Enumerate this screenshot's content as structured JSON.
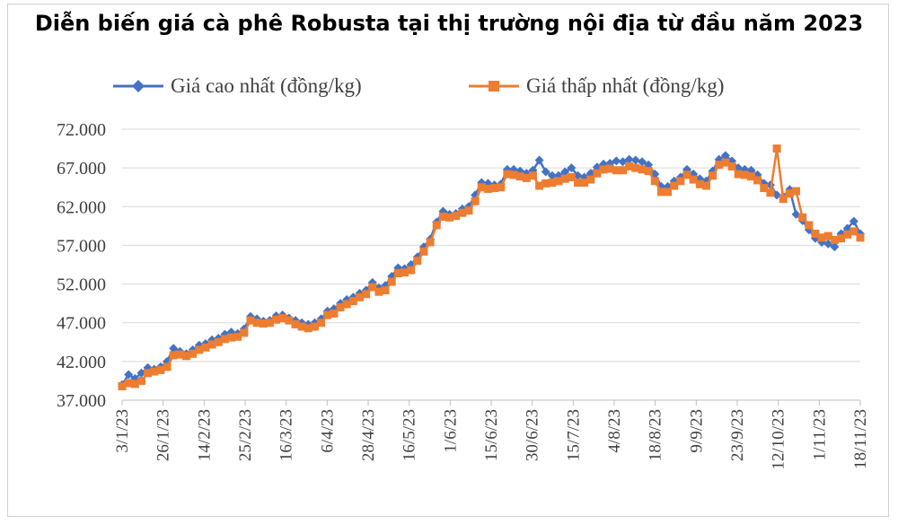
{
  "chart_data": {
    "type": "line",
    "title": "Diễn biến giá cà phê Robusta tại thị trường nội địa từ đầu năm 2023",
    "xlabel": "",
    "ylabel": "",
    "ylim": [
      37000,
      72000
    ],
    "yticks": [
      {
        "value": 37000,
        "label": "37.000"
      },
      {
        "value": 42000,
        "label": "42.000"
      },
      {
        "value": 47000,
        "label": "47.000"
      },
      {
        "value": 52000,
        "label": "52.000"
      },
      {
        "value": 57000,
        "label": "57.000"
      },
      {
        "value": 62000,
        "label": "62.000"
      },
      {
        "value": 67000,
        "label": "67.000"
      },
      {
        "value": 72000,
        "label": "72.000"
      }
    ],
    "xtick_labels": [
      "3/1/23",
      "26/1/23",
      "14/2/23",
      "25/2/23",
      "16/3/23",
      "6/4/23",
      "28/4/23",
      "16/5/23",
      "1/6/23",
      "15/6/23",
      "30/6/23",
      "15/7/23",
      "4/8/23",
      "18/8/23",
      "9/9/23",
      "23/9/23",
      "12/10/23",
      "1/11/23",
      "18/11/23"
    ],
    "grid": true,
    "legend_position": "top",
    "series": [
      {
        "name": "Giá cao nhất (đồng/kg)",
        "color": "#4472C4",
        "marker": "diamond",
        "values": [
          39000,
          40300,
          39800,
          40500,
          41200,
          41000,
          41300,
          42000,
          43700,
          43300,
          43000,
          43500,
          44100,
          44300,
          44800,
          45000,
          45500,
          45800,
          45600,
          46200,
          47800,
          47500,
          47200,
          47300,
          47900,
          48000,
          47600,
          47300,
          47000,
          46800,
          47000,
          47500,
          48500,
          48800,
          49500,
          50000,
          50300,
          50800,
          51200,
          52200,
          51500,
          51800,
          53000,
          54100,
          54000,
          54500,
          55500,
          56800,
          57800,
          60000,
          61400,
          61000,
          61100,
          61700,
          62000,
          63500,
          65100,
          65000,
          64800,
          64900,
          66800,
          66800,
          66600,
          66300,
          66700,
          68000,
          66500,
          66000,
          66000,
          66500,
          67000,
          66000,
          65800,
          66300,
          67100,
          67500,
          67600,
          67900,
          67800,
          68100,
          68000,
          67800,
          67400,
          66200,
          64600,
          64600,
          65300,
          65800,
          66800,
          66200,
          65600,
          65300,
          66600,
          68100,
          68600,
          67900,
          67000,
          66800,
          66700,
          66100,
          65000,
          64800,
          63500,
          63300,
          64200,
          61000,
          60200,
          59000,
          57900,
          57400,
          57200,
          56800,
          58500,
          59200,
          60100,
          58500
        ]
      },
      {
        "name": "Giá thấp nhất (đồng/kg)",
        "color": "#ED7D31",
        "marker": "square",
        "values": [
          38800,
          39200,
          39100,
          39500,
          40500,
          40700,
          40900,
          41300,
          42800,
          42900,
          42700,
          43000,
          43500,
          43800,
          44200,
          44500,
          44900,
          45100,
          45200,
          45700,
          47300,
          47000,
          46900,
          47000,
          47400,
          47600,
          47300,
          46800,
          46500,
          46300,
          46500,
          47000,
          48000,
          48200,
          49000,
          49400,
          49800,
          50300,
          50700,
          51600,
          51000,
          51200,
          52300,
          53400,
          53500,
          53800,
          55000,
          56200,
          57400,
          59600,
          60700,
          60600,
          60800,
          61200,
          61500,
          62700,
          64500,
          64300,
          64400,
          64500,
          66200,
          66100,
          65900,
          65700,
          66000,
          64700,
          65000,
          65100,
          65300,
          65600,
          65800,
          65100,
          65100,
          65500,
          66300,
          66800,
          66900,
          66700,
          66700,
          67200,
          67000,
          66800,
          66600,
          65300,
          63900,
          63900,
          64700,
          65300,
          66100,
          65500,
          64900,
          64700,
          66000,
          67400,
          67700,
          67200,
          66200,
          66100,
          65900,
          65400,
          64400,
          63800,
          69500,
          63000,
          63700,
          64000,
          60600,
          59600,
          58500,
          58000,
          58200,
          57700,
          57900,
          58400,
          58800,
          58000
        ]
      }
    ]
  }
}
